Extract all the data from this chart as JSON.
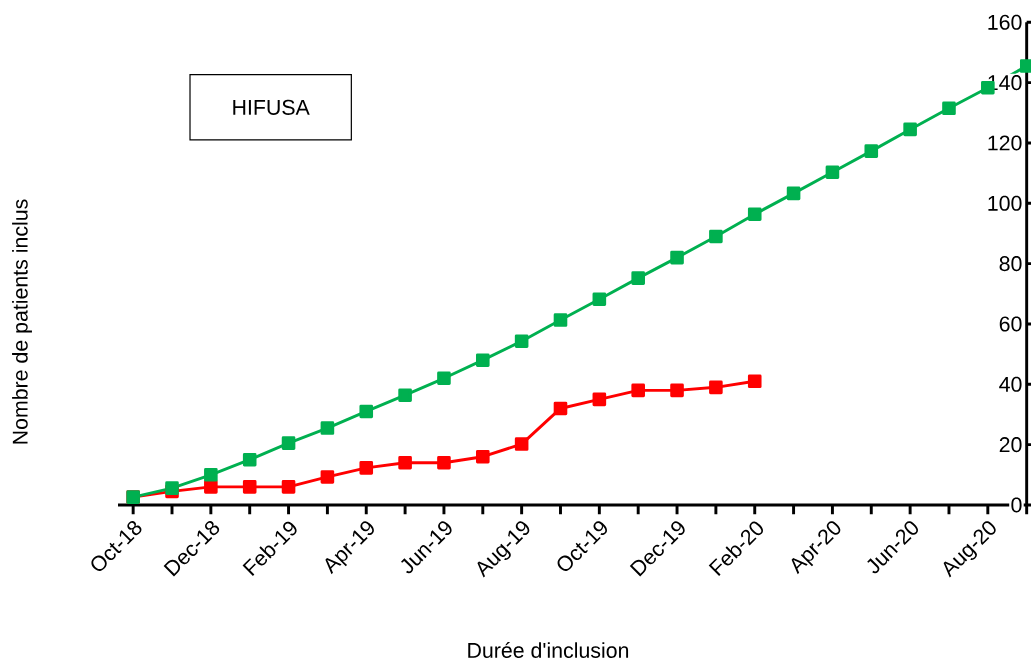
{
  "chart_data": {
    "type": "line",
    "xlabel": "Durée d'inclusion",
    "ylabel": "Nombre de patients inclus",
    "annotations": [
      "HIFUSA"
    ],
    "categories": [
      "Oct-18",
      null,
      "Dec-18",
      null,
      "Feb-19",
      null,
      "Apr-19",
      null,
      "Jun-19",
      null,
      "Aug-19",
      null,
      "Oct-19",
      null,
      "Dec-19",
      null,
      "Feb-20",
      null,
      "Apr-20",
      null,
      "Jun-20",
      null,
      "Aug-20",
      null
    ],
    "series": [
      {
        "color": "#00b050",
        "values": [
          2.6,
          5.6,
          10,
          15,
          20.5,
          25.5,
          31,
          36.4,
          42,
          48,
          54.3,
          61.3,
          68.2,
          75.2,
          82,
          89,
          96.4,
          103.3,
          110.3,
          117.3,
          124.5,
          131.5,
          138.3,
          145.5
        ]
      },
      {
        "color": "#ff0000",
        "values": [
          2.6,
          4.5,
          6,
          6,
          6,
          9.3,
          12.3,
          14,
          14,
          16,
          20.2,
          32,
          35,
          38,
          38,
          39,
          41,
          null,
          null,
          null,
          null,
          null,
          null,
          null
        ]
      }
    ],
    "ylim": [
      0,
      160
    ],
    "yticks": [
      0,
      20,
      40,
      60,
      80,
      100,
      120,
      140,
      160
    ],
    "grid": false,
    "marker": "square",
    "line_style": "solid"
  }
}
